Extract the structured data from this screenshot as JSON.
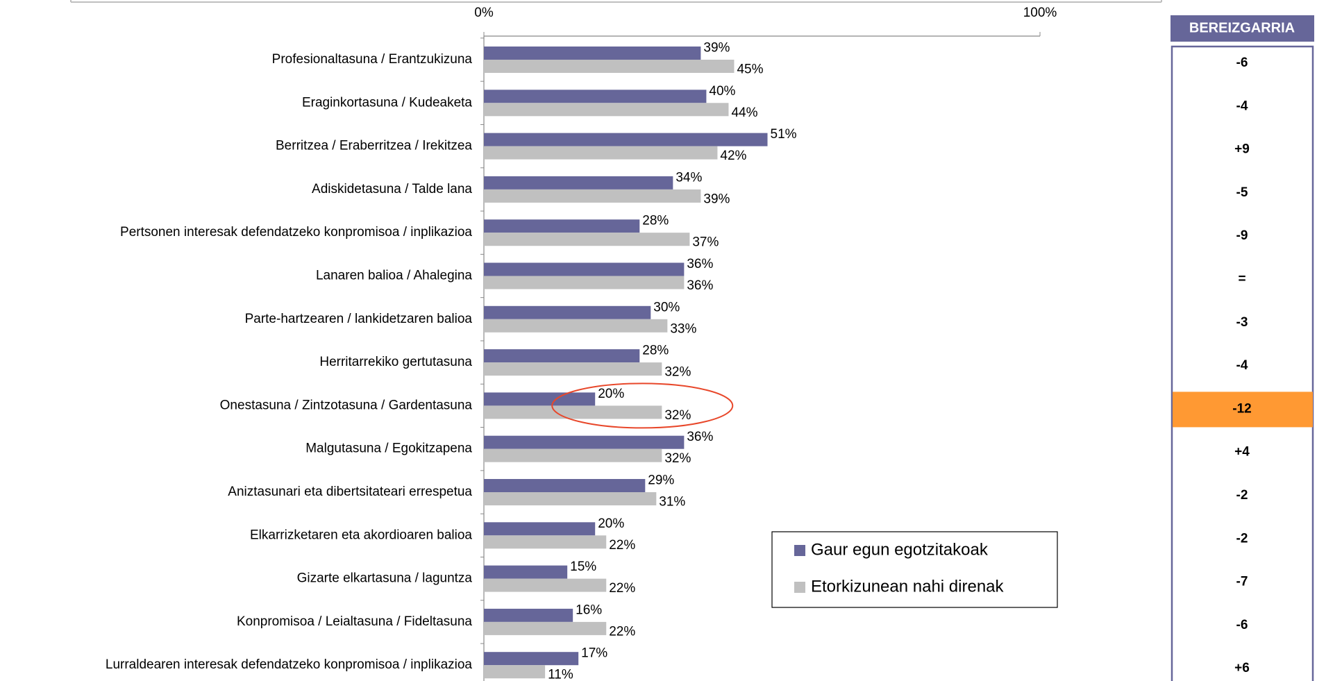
{
  "chart_data": {
    "type": "bar",
    "orientation": "horizontal",
    "categories": [
      "Profesionaltasuna / Erantzukizuna",
      "Eraginkortasuna / Kudeaketa",
      "Berritzea / Eraberritzea / Irekitzea",
      "Adiskidetasuna / Talde lana",
      "Pertsonen interesak defendatzeko konpromisoa / inplikazioa",
      "Lanaren balioa / Ahalegina",
      "Parte-hartzearen / lankidetzaren balioa",
      "Herritarrekiko gertutasuna",
      "Onestasuna / Zintzotasuna / Gardentasuna",
      "Malgutasuna / Egokitzapena",
      "Aniztasunari eta dibertsitateari errespetua",
      "Elkarrizketaren eta akordioaren balioa",
      "Gizarte elkartasuna / laguntza",
      "Konpromisoa / Leialtasuna / Fideltasuna",
      "Lurraldearen interesak defendatzeko konpromisoa / inplikazioa"
    ],
    "series": [
      {
        "name": "Gaur egun egotzitakoak",
        "color": "#666699",
        "values": [
          39,
          40,
          51,
          34,
          28,
          36,
          30,
          28,
          20,
          36,
          29,
          20,
          15,
          16,
          17
        ],
        "value_labels": [
          "39%",
          "40%",
          "51%",
          "34%",
          "28%",
          "36%",
          "30%",
          "28%",
          "20%",
          "36%",
          "29%",
          "20%",
          "15%",
          "16%",
          "17%"
        ]
      },
      {
        "name": "Etorkizunean nahi direnak",
        "color": "#c0c0c0",
        "values": [
          45,
          44,
          42,
          39,
          37,
          36,
          33,
          32,
          32,
          32,
          31,
          22,
          22,
          22,
          11
        ],
        "value_labels": [
          "45%",
          "44%",
          "42%",
          "39%",
          "37%",
          "36%",
          "33%",
          "32%",
          "32%",
          "32%",
          "31%",
          "22%",
          "22%",
          "22%",
          "11%"
        ]
      }
    ],
    "xlim": [
      0,
      100
    ],
    "xticks": [
      {
        "value": 0,
        "label": "0%"
      },
      {
        "value": 100,
        "label": "100%"
      }
    ],
    "legend": "bottom-right",
    "highlight_row": 8,
    "highlight_color": "#ff9933",
    "annotation_color": "#e8472a"
  },
  "table": {
    "header": "BEREIZGARRIA",
    "header_color": "#666699",
    "rows": [
      "-6",
      "-4",
      "+9",
      "-5",
      "-9",
      "=",
      "-3",
      "-4",
      "-12",
      "+4",
      "-2",
      "-2",
      "-7",
      "-6",
      "+6"
    ]
  }
}
